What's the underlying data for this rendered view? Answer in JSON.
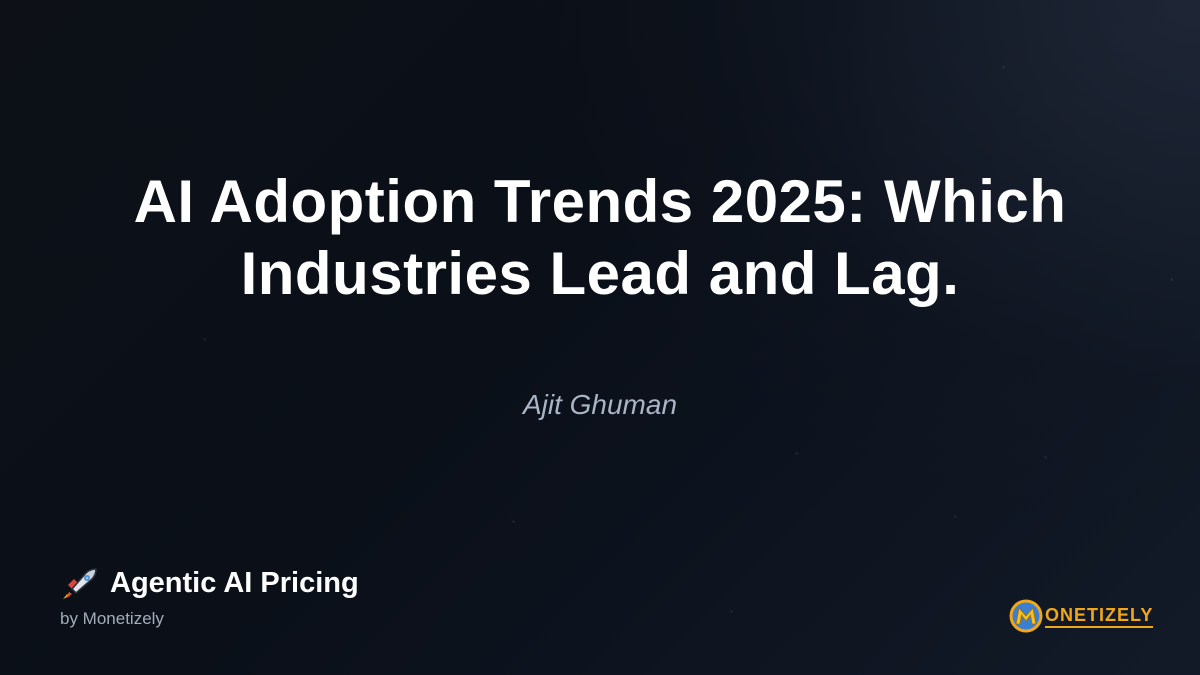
{
  "title": "AI Adoption Trends 2025: Which Industries Lead and Lag.",
  "author": "Ajit Ghuman",
  "brand": {
    "name": "Agentic AI Pricing",
    "subtitle": "by Monetizely",
    "icon": "rocket-icon"
  },
  "logo": {
    "letter": "M",
    "text": "ONETIZELY",
    "color": "#f2a71b"
  },
  "colors": {
    "background": "#0b1019",
    "title": "#ffffff",
    "author": "#a9b4c6"
  }
}
